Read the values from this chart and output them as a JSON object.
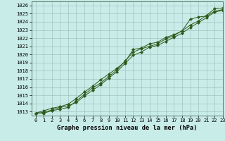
{
  "x": [
    0,
    1,
    2,
    3,
    4,
    5,
    6,
    7,
    8,
    9,
    10,
    11,
    12,
    13,
    14,
    15,
    16,
    17,
    18,
    19,
    20,
    21,
    22,
    23
  ],
  "line1": [
    1012.8,
    1012.8,
    1013.1,
    1013.3,
    1013.5,
    1014.3,
    1015.1,
    1015.9,
    1016.5,
    1017.3,
    1018.1,
    1019.2,
    1020.3,
    1020.7,
    1021.0,
    1021.3,
    1021.9,
    1022.3,
    1022.9,
    1024.3,
    1024.6,
    1024.7,
    1025.3,
    1025.5
  ],
  "line2": [
    1012.8,
    1013.1,
    1013.4,
    1013.6,
    1013.9,
    1014.6,
    1015.4,
    1016.1,
    1016.9,
    1017.6,
    1018.3,
    1019.1,
    1020.6,
    1020.8,
    1021.3,
    1021.5,
    1022.1,
    1022.4,
    1022.9,
    1023.6,
    1024.1,
    1024.8,
    1025.6,
    1025.7
  ],
  "line3": [
    1012.8,
    1012.9,
    1013.2,
    1013.5,
    1013.7,
    1014.1,
    1014.9,
    1015.6,
    1016.3,
    1017.1,
    1017.9,
    1018.9,
    1019.9,
    1020.3,
    1020.9,
    1021.1,
    1021.6,
    1022.1,
    1022.6,
    1023.3,
    1023.9,
    1024.5,
    1025.2,
    1025.4
  ],
  "line_color": "#2d5a1b",
  "bg_color": "#c8ece8",
  "grid_minor_color": "#b8d8d4",
  "grid_major_color": "#9abab6",
  "xlim": [
    -0.5,
    23
  ],
  "ylim": [
    1012.5,
    1026.5
  ],
  "yticks": [
    1013,
    1014,
    1015,
    1016,
    1017,
    1018,
    1019,
    1020,
    1021,
    1022,
    1023,
    1024,
    1025,
    1026
  ],
  "xticks": [
    0,
    1,
    2,
    3,
    4,
    5,
    6,
    7,
    8,
    9,
    10,
    11,
    12,
    13,
    14,
    15,
    16,
    17,
    18,
    19,
    20,
    21,
    22,
    23
  ],
  "xlabel": "Graphe pression niveau de la mer (hPa)",
  "marker": "D",
  "markersize": 2.2,
  "linewidth": 0.7,
  "tick_fontsize": 5.0,
  "xlabel_fontsize": 6.2
}
